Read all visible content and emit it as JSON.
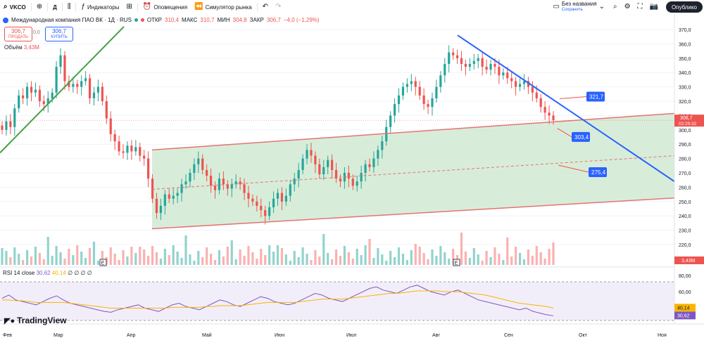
{
  "toolbar": {
    "ticker": "VKCO",
    "interval": "Д",
    "indicators_label": "Индикаторы",
    "alerts_label": "Оповещения",
    "replay_label": "Симулятор рынка",
    "layout_name": "Без названия",
    "layout_saved": "Сохранить",
    "publish_label": "Опублико"
  },
  "legend": {
    "title": "Международная компания ПАО ВК · 1Д · RUS",
    "open_label": "ОТКР",
    "open": "310,4",
    "high_label": "МАКС",
    "high": "310,7",
    "low_label": "МИН",
    "low": "304,8",
    "close_label": "ЗАКР",
    "close": "306,7",
    "change": "−4,0 (−1,29%)"
  },
  "trade": {
    "sell_price": "306,7",
    "sell_label": "ПРОДАТЬ",
    "spread": "0,0",
    "buy_price": "306,7",
    "buy_label": "КУПИТЬ"
  },
  "volume": {
    "label": "Объём",
    "value": "3,43M"
  },
  "rsi": {
    "label": "RSI 14 close",
    "value": "30,62",
    "ma": "40,14",
    "zeros": "∅ ∅ ∅ ∅"
  },
  "brand": {
    "name": "TradingView"
  },
  "colors": {
    "up": "#26a69a",
    "down": "#ef5350",
    "channel_line": "#e57373",
    "channel_fill": "#c8e6c9",
    "trend_green": "#43a047",
    "trend_blue": "#2962ff",
    "rsi": "#7e57c2",
    "rsi_ma": "#f7b500"
  },
  "chart_data": {
    "type": "candlestick",
    "price_axis": {
      "range": [
        210,
        370
      ],
      "ticks": [
        "370,0",
        "360,0",
        "350,0",
        "340,0",
        "330,0",
        "320,0",
        "310,0",
        "300,0",
        "290,0",
        "280,0",
        "270,0",
        "260,0",
        "250,0",
        "240,0",
        "230,0",
        "220,0"
      ]
    },
    "time_axis": {
      "labels": [
        "Фев",
        "Мар",
        "Апр",
        "Май",
        "Июн",
        "Июл",
        "Авг",
        "Сен",
        "Окт",
        "Ноя"
      ]
    },
    "last_price": {
      "value": "306,7",
      "countdown": "02:29:32"
    },
    "price_labels": [
      {
        "value": "321,7",
        "price": 321.7
      },
      {
        "value": "303,4",
        "price": 303.4
      },
      {
        "value": "275,4",
        "price": 275.4
      }
    ],
    "candles_close": [
      300,
      306,
      302,
      315,
      324,
      322,
      330,
      326,
      328,
      320,
      318,
      322,
      326,
      344,
      352,
      334,
      330,
      332,
      330,
      334,
      336,
      322,
      326,
      330,
      320,
      308,
      297,
      292,
      285,
      284,
      289,
      285,
      288,
      282,
      280,
      266,
      252,
      242,
      247,
      255,
      252,
      254,
      256,
      262,
      264,
      270,
      276,
      280,
      272,
      268,
      261,
      258,
      266,
      262,
      259,
      262,
      264,
      262,
      256,
      252,
      250,
      247,
      244,
      240,
      246,
      252,
      256,
      250,
      254,
      262,
      266,
      272,
      280,
      286,
      282,
      276,
      269,
      274,
      279,
      272,
      266,
      264,
      270,
      266,
      261,
      264,
      270,
      276,
      274,
      280,
      286,
      292,
      302,
      310,
      318,
      324,
      330,
      332,
      334,
      330,
      324,
      318,
      316,
      322,
      330,
      338,
      346,
      354,
      352,
      350,
      346,
      344,
      346,
      348,
      350,
      344,
      342,
      346,
      344,
      338,
      340,
      336,
      334,
      330,
      332,
      334,
      330,
      326,
      322,
      316,
      312,
      310,
      306.7
    ],
    "volume_ticks": [],
    "volume_value": "3,43M",
    "rsi_axis": {
      "ticks": [
        "80,00",
        "60,00",
        "40,00"
      ]
    },
    "rsi_values": [
      52,
      56,
      50,
      48,
      46,
      44,
      48,
      52,
      55,
      50,
      46,
      44,
      42,
      40,
      38,
      36,
      35,
      38,
      40,
      42,
      44,
      40,
      38,
      36,
      40,
      44,
      46,
      42,
      40,
      38,
      42,
      46,
      50,
      48,
      44,
      42,
      46,
      50,
      54,
      52,
      48,
      46,
      44,
      46,
      50,
      54,
      58,
      56,
      52,
      50,
      48,
      52,
      56,
      60,
      64,
      66,
      62,
      60,
      58,
      62,
      66,
      68,
      64,
      60,
      58,
      56,
      60,
      62,
      58,
      54,
      50,
      48,
      46,
      44,
      42,
      40,
      38,
      40,
      36,
      34,
      32,
      30.62
    ],
    "rsi_ma_values": [
      50,
      50,
      49,
      49,
      48,
      47,
      47,
      47,
      47,
      47,
      46,
      45,
      44,
      43,
      42,
      41,
      40,
      40,
      40,
      40,
      40,
      40,
      40,
      40,
      40,
      41,
      41,
      41,
      41,
      41,
      42,
      42,
      43,
      43,
      43,
      43,
      44,
      45,
      46,
      47,
      47,
      47,
      47,
      47,
      48,
      49,
      50,
      51,
      51,
      51,
      51,
      52,
      53,
      54,
      55,
      56,
      57,
      58,
      58,
      59,
      60,
      61,
      61,
      61,
      61,
      60,
      60,
      60,
      59,
      58,
      57,
      56,
      54,
      52,
      50,
      48,
      46,
      45,
      44,
      43,
      42,
      40.14
    ],
    "annotations": [
      "E",
      "E"
    ]
  }
}
